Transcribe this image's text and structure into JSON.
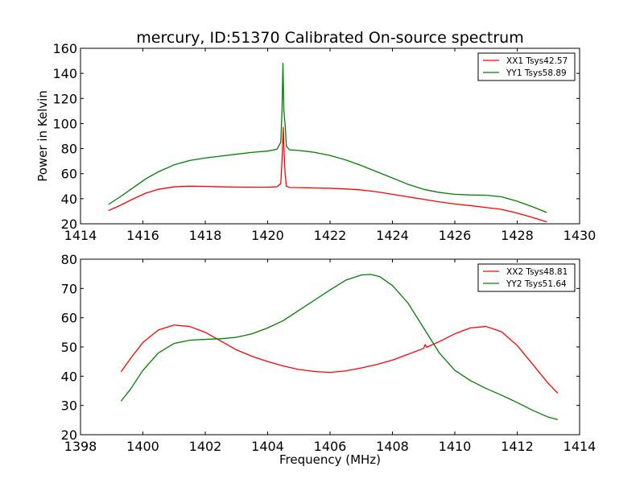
{
  "figure": {
    "title": "mercury, ID:51370 Calibrated On-source spectrum",
    "ylabel": "Power in Kelvin",
    "xlabel": "Frequency (MHz)"
  },
  "chart_data": [
    {
      "type": "line",
      "title": "mercury, ID:51370 Calibrated On-source spectrum",
      "xlabel": "",
      "ylabel": "Power in Kelvin",
      "xlim": [
        1414,
        1430
      ],
      "ylim": [
        20,
        160
      ],
      "xticks": [
        1414,
        1416,
        1418,
        1420,
        1422,
        1424,
        1426,
        1428,
        1430
      ],
      "yticks": [
        20,
        40,
        60,
        80,
        100,
        120,
        140,
        160
      ],
      "grid": false,
      "legend_position": "top-right",
      "series": [
        {
          "name": "XX1 Tsys42.57",
          "color": "#ff0000",
          "x": [
            1414.9,
            1415.3,
            1415.7,
            1416.1,
            1416.5,
            1417.0,
            1417.5,
            1418.0,
            1418.5,
            1419.0,
            1419.5,
            1420.0,
            1420.3,
            1420.42,
            1420.46,
            1420.5,
            1420.53,
            1420.56,
            1420.6,
            1420.7,
            1421.0,
            1421.5,
            1422.0,
            1422.5,
            1423.0,
            1423.5,
            1424.0,
            1424.5,
            1425.0,
            1425.5,
            1426.0,
            1426.5,
            1427.0,
            1427.5,
            1428.0,
            1428.5,
            1428.95
          ],
          "y": [
            30.5,
            35,
            40,
            44.5,
            47.5,
            49.5,
            50,
            49.8,
            49.5,
            49.3,
            49.2,
            49.2,
            49.5,
            52,
            70,
            97,
            75,
            60,
            50,
            49,
            48.8,
            48.6,
            48.3,
            47.8,
            47,
            45.5,
            43.5,
            41.5,
            39.5,
            37.5,
            35.8,
            34.5,
            33,
            31.5,
            28.5,
            25,
            21.5
          ]
        },
        {
          "name": "YY1 Tsys58.89",
          "color": "#008000",
          "x": [
            1414.9,
            1415.3,
            1415.7,
            1416.1,
            1416.5,
            1417.0,
            1417.5,
            1418.0,
            1418.5,
            1419.0,
            1419.5,
            1420.0,
            1420.3,
            1420.42,
            1420.46,
            1420.49,
            1420.52,
            1420.56,
            1420.6,
            1420.7,
            1421.0,
            1421.5,
            1422.0,
            1422.5,
            1423.0,
            1423.5,
            1424.0,
            1424.5,
            1425.0,
            1425.5,
            1426.0,
            1426.5,
            1427.0,
            1427.5,
            1428.0,
            1428.5,
            1428.95
          ],
          "y": [
            35.5,
            42,
            49,
            56,
            61.5,
            67,
            70.5,
            72.5,
            74,
            75.5,
            77,
            78,
            79.5,
            85,
            110,
            148,
            110,
            99,
            82,
            79,
            78.5,
            77,
            74.5,
            71,
            66.5,
            61.5,
            56.5,
            51.5,
            47.5,
            45,
            43.5,
            43,
            42.8,
            41.5,
            38,
            33.5,
            29
          ]
        }
      ]
    },
    {
      "type": "line",
      "title": "",
      "xlabel": "Frequency (MHz)",
      "ylabel": "",
      "xlim": [
        1398,
        1414
      ],
      "ylim": [
        20,
        80
      ],
      "xticks": [
        1398,
        1400,
        1402,
        1404,
        1406,
        1408,
        1410,
        1412,
        1414
      ],
      "yticks": [
        20,
        30,
        40,
        50,
        60,
        70,
        80
      ],
      "grid": false,
      "legend_position": "top-right",
      "series": [
        {
          "name": "XX2 Tsys48.81",
          "color": "#ff0000",
          "x": [
            1399.3,
            1399.6,
            1400.0,
            1400.5,
            1401.0,
            1401.5,
            1402.0,
            1402.5,
            1403.0,
            1403.5,
            1404.0,
            1404.5,
            1405.0,
            1405.5,
            1406.0,
            1406.5,
            1407.0,
            1407.5,
            1408.0,
            1408.5,
            1409.0,
            1409.05,
            1409.1,
            1409.5,
            1410.0,
            1410.5,
            1411.0,
            1411.5,
            1412.0,
            1412.5,
            1413.0,
            1413.3
          ],
          "y": [
            41.5,
            46,
            51.5,
            55.8,
            57.5,
            57,
            55,
            52,
            49,
            46.8,
            45,
            43.5,
            42.3,
            41.6,
            41.3,
            41.8,
            42.8,
            44,
            45.5,
            47.5,
            49.5,
            50.8,
            49.9,
            51.8,
            54.5,
            56.5,
            57,
            55.2,
            50.5,
            44,
            37.5,
            34.2
          ]
        },
        {
          "name": "YY2 Tsys51.64",
          "color": "#008000",
          "x": [
            1399.3,
            1399.6,
            1400.0,
            1400.5,
            1401.0,
            1401.5,
            1402.0,
            1402.5,
            1403.0,
            1403.5,
            1404.0,
            1404.5,
            1405.0,
            1405.5,
            1406.0,
            1406.5,
            1407.0,
            1407.3,
            1407.6,
            1408.0,
            1408.5,
            1409.0,
            1409.5,
            1410.0,
            1410.5,
            1411.0,
            1411.5,
            1412.0,
            1412.5,
            1413.0,
            1413.3
          ],
          "y": [
            31.5,
            35.5,
            42,
            48,
            51.2,
            52.3,
            52.6,
            52.8,
            53.3,
            54.5,
            56.5,
            59,
            62.5,
            66,
            69.5,
            72.8,
            74.6,
            74.8,
            74,
            71,
            65,
            56.5,
            48,
            42,
            38.5,
            35.8,
            33.5,
            31,
            28.3,
            26,
            25.2
          ]
        }
      ]
    }
  ]
}
